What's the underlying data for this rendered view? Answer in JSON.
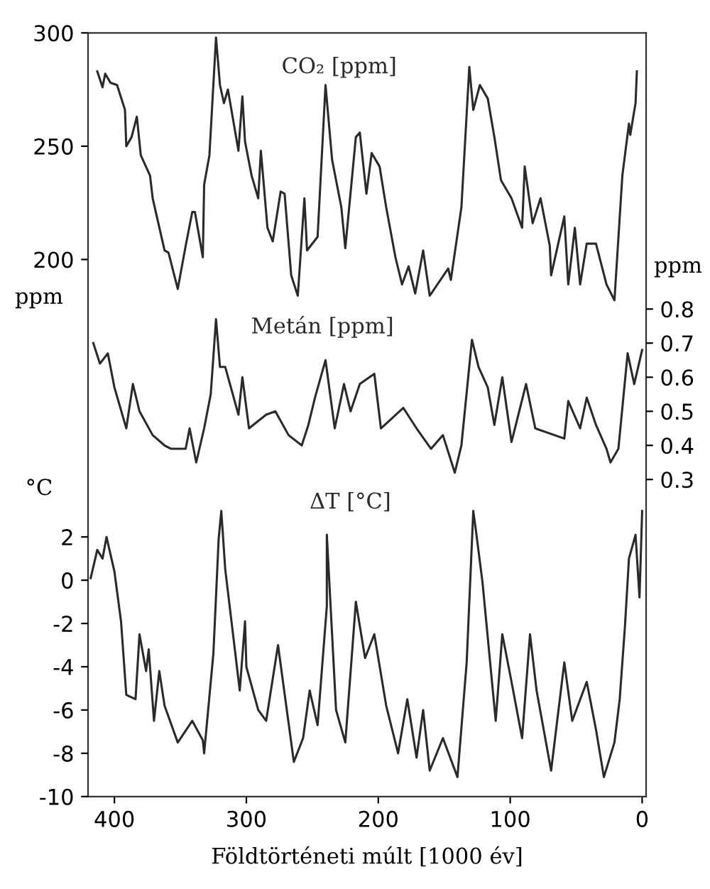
{
  "chart_data": {
    "type": "line",
    "xlabel": "Földtörténeti múlt [1000 év]",
    "ylabel": "ppm",
    "y2label": "ppm",
    "y3label": "°C",
    "xlim": [
      420,
      -3
    ],
    "xticks": [
      400,
      300,
      200,
      100,
      0
    ],
    "ylim": [
      -37,
      300
    ],
    "yticks": [
      200,
      250,
      300
    ],
    "y2lim": [
      -0.63,
      1.61
    ],
    "y2ticks": [
      0.3,
      0.4,
      0.5,
      0.6,
      0.7,
      0.8
    ],
    "y3lim": [
      -10,
      25.3
    ],
    "y3ticks": [
      -10,
      -8,
      -6,
      -4,
      -2,
      0,
      2
    ],
    "grid": false,
    "legend": false,
    "marker": "none",
    "line_style": "solid",
    "series": [
      {
        "name": "CO₂ [ppm]",
        "color": "#2a2a2a",
        "axis": "y",
        "x": [
          413,
          409,
          407,
          403,
          398,
          392,
          391,
          387,
          383,
          380,
          373,
          371,
          362,
          359,
          352,
          346,
          341,
          339,
          333,
          332,
          328,
          323,
          320,
          317,
          314,
          306,
          303,
          301,
          296,
          291,
          289,
          284,
          280,
          274,
          271,
          266,
          261,
          256,
          254,
          246,
          240,
          235,
          228,
          225,
          217,
          214,
          209,
          205,
          199,
          194,
          187,
          182,
          177,
          172,
          166,
          161,
          147,
          145,
          137,
          131,
          128,
          123,
          117,
          112,
          107,
          99,
          91,
          89,
          83,
          77,
          70,
          69,
          59,
          56,
          51,
          47,
          42,
          35,
          27,
          21,
          15,
          10,
          9,
          5,
          4
        ],
        "values": [
          283,
          276,
          282,
          278,
          277,
          266,
          250,
          254,
          263,
          246,
          237,
          227,
          204,
          203,
          187,
          206,
          221,
          221,
          201,
          233,
          246,
          298,
          277,
          269,
          275,
          248,
          272,
          252,
          237,
          227,
          248,
          214,
          208,
          230,
          229,
          193,
          184,
          227,
          204,
          210,
          277,
          244,
          223,
          205,
          254,
          256,
          229,
          247,
          241,
          223,
          201,
          189,
          197,
          185,
          204,
          184,
          196,
          191,
          223,
          285,
          266,
          277,
          271,
          254,
          235,
          227,
          214,
          241,
          216,
          227,
          206,
          193,
          219,
          189,
          214,
          189,
          207,
          207,
          189,
          182,
          237,
          260,
          255,
          269,
          283
        ]
      },
      {
        "name": "Metán [ppm]",
        "color": "#2a2a2a",
        "axis": "y2",
        "x": [
          416,
          411,
          405,
          400,
          391,
          386,
          381,
          371,
          362,
          357,
          346,
          343,
          338,
          332,
          327,
          323,
          320,
          316,
          306,
          303,
          298,
          285,
          278,
          268,
          258,
          253,
          248,
          240,
          233,
          226,
          221,
          214,
          203,
          198,
          181,
          171,
          160,
          151,
          142,
          137,
          129,
          124,
          117,
          112,
          106,
          99,
          88,
          81,
          59,
          56,
          47,
          42,
          35,
          27,
          24,
          18,
          11,
          6,
          0
        ],
        "values": [
          0.7,
          0.64,
          0.67,
          0.57,
          0.45,
          0.58,
          0.5,
          0.43,
          0.4,
          0.39,
          0.39,
          0.45,
          0.35,
          0.45,
          0.55,
          0.77,
          0.63,
          0.63,
          0.49,
          0.6,
          0.45,
          0.49,
          0.5,
          0.43,
          0.4,
          0.46,
          0.54,
          0.65,
          0.45,
          0.58,
          0.5,
          0.58,
          0.61,
          0.45,
          0.51,
          0.45,
          0.39,
          0.43,
          0.32,
          0.4,
          0.71,
          0.63,
          0.57,
          0.46,
          0.6,
          0.41,
          0.58,
          0.45,
          0.42,
          0.53,
          0.45,
          0.54,
          0.46,
          0.39,
          0.35,
          0.39,
          0.67,
          0.58,
          0.68
        ]
      },
      {
        "name": "ΔT [°C]",
        "color": "#2a2a2a",
        "axis": "y3",
        "x": [
          418,
          413,
          409,
          406,
          400,
          395,
          391,
          384,
          381,
          376,
          374,
          370,
          366,
          362,
          352,
          341,
          333,
          332,
          325,
          321,
          319,
          316,
          305,
          301,
          300,
          291,
          285,
          276,
          264,
          257,
          252,
          246,
          239,
          239,
          232,
          225,
          217,
          210,
          203,
          194,
          185,
          178,
          171,
          166,
          161,
          151,
          140,
          133,
          128,
          126,
          121,
          111,
          106,
          99,
          91,
          85,
          80,
          69,
          59,
          53,
          42,
          35,
          29,
          21,
          17,
          13,
          10,
          5,
          2,
          0
        ],
        "values": [
          0.1,
          1.4,
          1.0,
          2.0,
          0.4,
          -1.9,
          -5.3,
          -5.5,
          -2.5,
          -4.2,
          -3.2,
          -6.5,
          -4.2,
          -5.8,
          -7.5,
          -6.5,
          -7.4,
          -8.0,
          -3.4,
          1.9,
          3.2,
          0.5,
          -5.1,
          -1.9,
          -4.0,
          -6.0,
          -6.5,
          -3.0,
          -8.4,
          -7.3,
          -5.1,
          -6.7,
          -1.2,
          2.1,
          -6.0,
          -7.5,
          -1.0,
          -3.6,
          -2.5,
          -5.8,
          -8.0,
          -5.5,
          -8.2,
          -6.0,
          -8.8,
          -7.3,
          -9.1,
          -3.8,
          3.2,
          2.3,
          -0.1,
          -6.5,
          -2.5,
          -4.7,
          -7.3,
          -2.5,
          -5.1,
          -8.8,
          -3.8,
          -6.5,
          -4.7,
          -6.9,
          -9.1,
          -7.5,
          -5.5,
          -2.1,
          1.0,
          2.1,
          -0.8,
          3.2
        ]
      }
    ]
  }
}
